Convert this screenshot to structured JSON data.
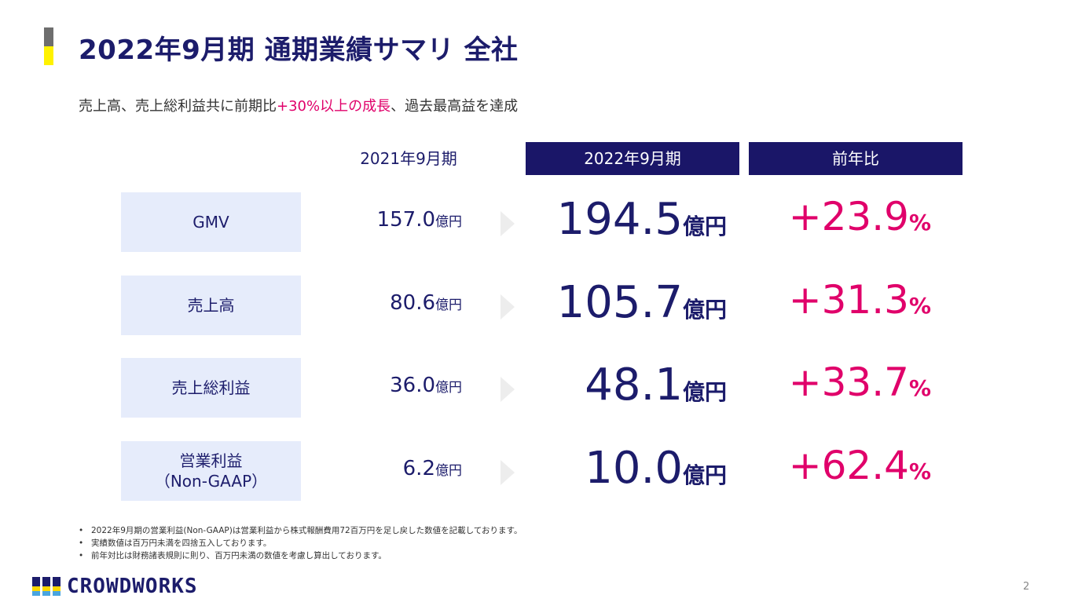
{
  "header": {
    "title": "2022年9月期 通期業績サマリ 全社",
    "subtitle_pre": "売上高、売上総利益共に前期比",
    "subtitle_highlight": "+30%以上の成長",
    "subtitle_post": "、過去最高益を達成"
  },
  "columns": {
    "prev": "2021年9月期",
    "current": "2022年9月期",
    "yoy": "前年比"
  },
  "rows": [
    {
      "label": "GMV",
      "prev_value": "157.0",
      "prev_unit": "億円",
      "cur_value": "194.5",
      "cur_unit": "億円",
      "yoy_value": "+23.9",
      "yoy_unit": "%"
    },
    {
      "label": "売上高",
      "prev_value": "80.6",
      "prev_unit": "億円",
      "cur_value": "105.7",
      "cur_unit": "億円",
      "yoy_value": "+31.3",
      "yoy_unit": "%"
    },
    {
      "label": "売上総利益",
      "prev_value": "36.0",
      "prev_unit": "億円",
      "cur_value": "48.1",
      "cur_unit": "億円",
      "yoy_value": "+33.7",
      "yoy_unit": "%"
    },
    {
      "label": "営業利益",
      "label2": "（Non-GAAP）",
      "prev_value": "6.2",
      "prev_unit": "億円",
      "cur_value": "10.0",
      "cur_unit": "億円",
      "yoy_value": "+62.4",
      "yoy_unit": "%"
    }
  ],
  "notes": [
    "2022年9月期の営業利益(Non-GAAP)は営業利益から株式報酬費用72百万円を足し戻した数値を記載しております。",
    "実績数値は百万円未満を四捨五入しております。",
    "前年対比は財務諸表規則に則り、百万円未満の数値を考慮し算出しております。"
  ],
  "footer": {
    "logo_text": "CROWDWORKS",
    "page_number": "2"
  },
  "colors": {
    "navy": "#1a1668",
    "accent_pink": "#e0006a",
    "label_bg": "#e6ecfb"
  }
}
